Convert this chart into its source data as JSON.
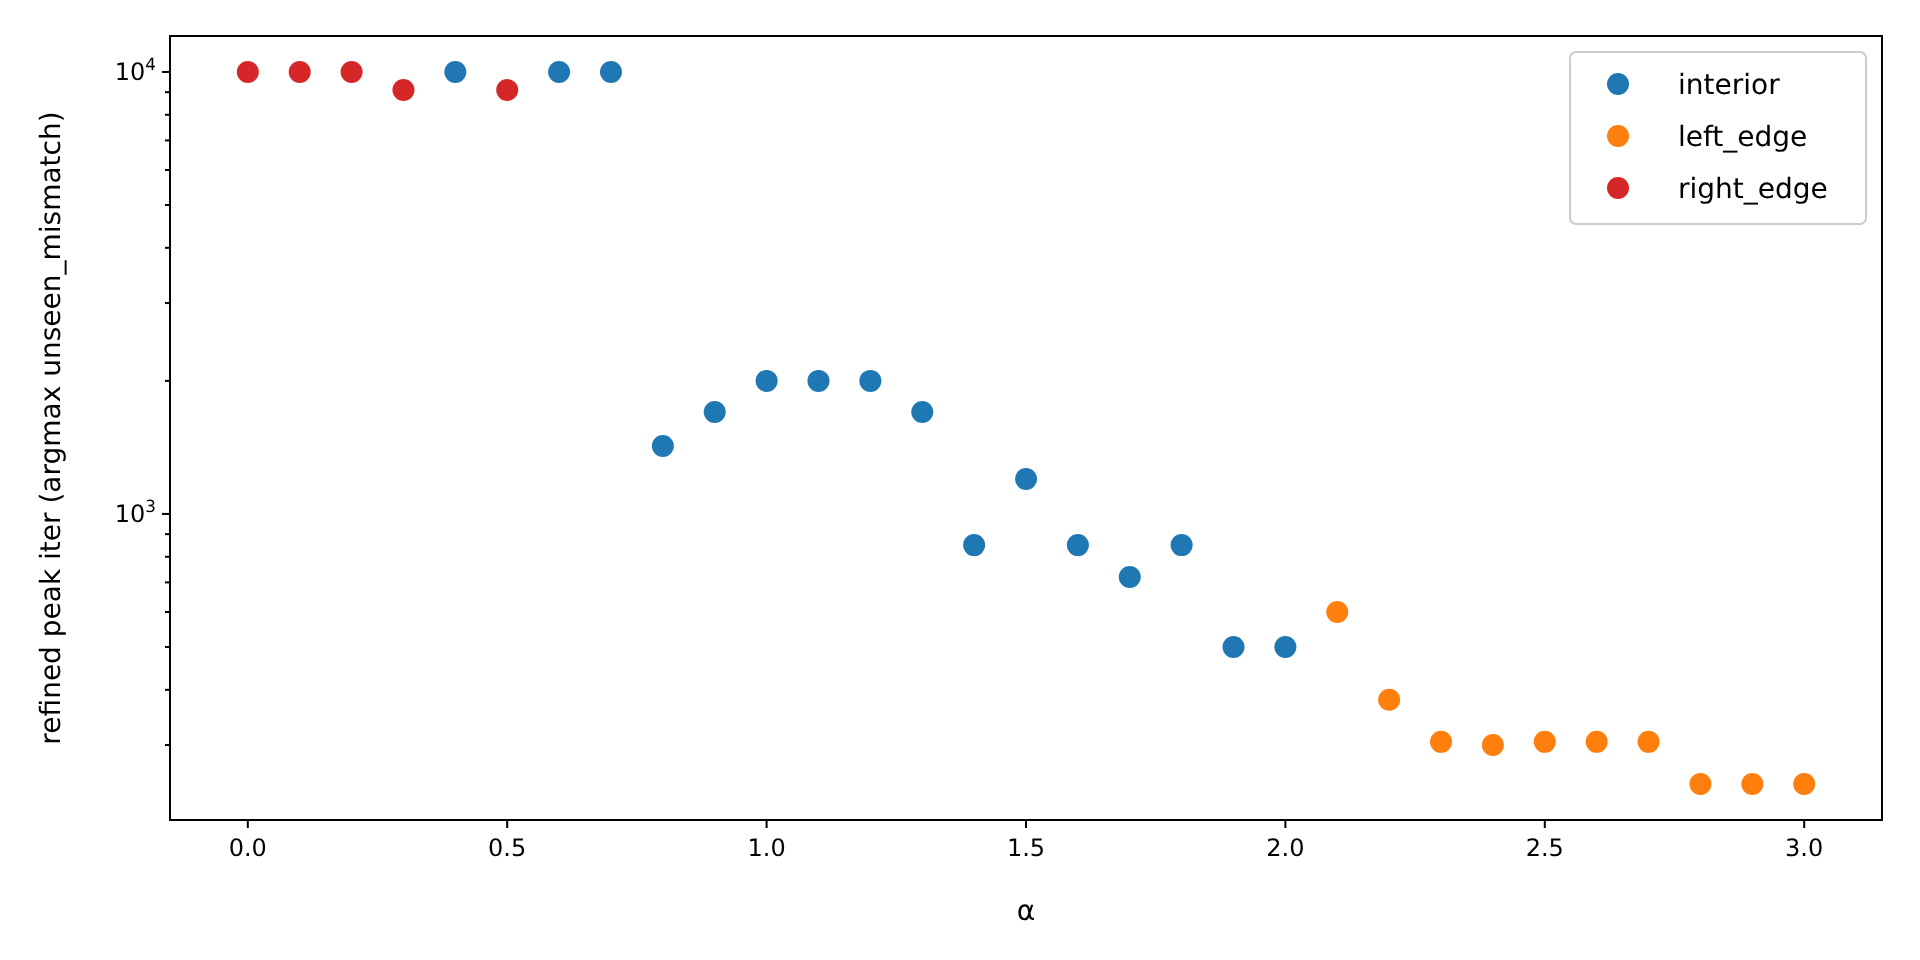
{
  "chart_data": {
    "type": "scatter",
    "xlabel": "α",
    "ylabel": "refined peak iter (argmax unseen_mismatch)",
    "log": "y",
    "marker": "circle",
    "legend": "top right",
    "grid": false,
    "xlim": [
      -0.15,
      3.15
    ],
    "xticks": [
      {
        "value": 0,
        "label": "0.0"
      },
      {
        "value": 0.5,
        "label": "0.5"
      },
      {
        "value": 1,
        "label": "1.0"
      },
      {
        "value": 1.5,
        "label": "1.5"
      },
      {
        "value": 2,
        "label": "2.0"
      },
      {
        "value": 2.5,
        "label": "2.5"
      },
      {
        "value": 3,
        "label": "3.0"
      }
    ],
    "ylim": [
      203,
      12060
    ],
    "yticks": [
      {
        "value": 300,
        "label": null
      },
      {
        "value": 400,
        "label": null
      },
      {
        "value": 500,
        "label": null
      },
      {
        "value": 600,
        "label": null
      },
      {
        "value": 700,
        "label": null
      },
      {
        "value": 800,
        "label": null
      },
      {
        "value": 900,
        "label": null
      },
      {
        "value": 1000,
        "label": "10$^{3}$"
      },
      {
        "value": 2000,
        "label": null
      },
      {
        "value": 3000,
        "label": null
      },
      {
        "value": 4000,
        "label": null
      },
      {
        "value": 5000,
        "label": null
      },
      {
        "value": 6000,
        "label": null
      },
      {
        "value": 7000,
        "label": null
      },
      {
        "value": 8000,
        "label": null
      },
      {
        "value": 9000,
        "label": null
      },
      {
        "value": 10000,
        "label": "10$^{4}$"
      }
    ],
    "series": [
      {
        "name": "interior",
        "color": "#1f77b4",
        "x": [
          0.4,
          0.6,
          0.7,
          0.8,
          0.9,
          1.0,
          1.1,
          1.2,
          1.3,
          1.4,
          1.5,
          1.6,
          1.7,
          1.8,
          1.9,
          2.0
        ],
        "values": [
          10000,
          10000,
          10000,
          1425,
          1700,
          2000,
          2000,
          2000,
          1700,
          850,
          1200,
          850,
          720,
          850,
          500,
          500
        ]
      },
      {
        "name": "left_edge",
        "color": "#ff7f0e",
        "x": [
          2.1,
          2.2,
          2.3,
          2.4,
          2.5,
          2.6,
          2.7,
          2.8,
          2.9,
          3.0
        ],
        "values": [
          600,
          380,
          305,
          300,
          305,
          305,
          305,
          245,
          245,
          245
        ]
      },
      {
        "name": "right_edge",
        "color": "#d62728",
        "x": [
          0.0,
          0.1,
          0.2,
          0.3,
          0.5
        ],
        "values": [
          10000,
          10000,
          10000,
          9100,
          9100
        ]
      }
    ]
  }
}
